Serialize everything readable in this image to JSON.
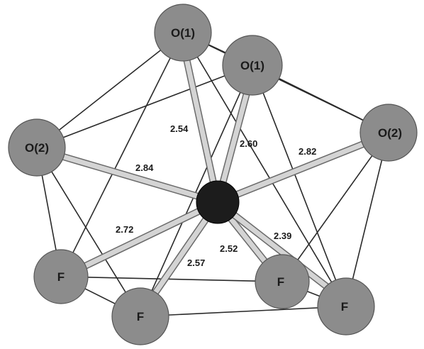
{
  "atoms": [
    {
      "id": "a1",
      "label": "O(1)",
      "type": "ligand"
    },
    {
      "id": "a2",
      "label": "O(1)",
      "type": "ligand"
    },
    {
      "id": "a3",
      "label": "O(2)",
      "type": "ligand"
    },
    {
      "id": "a4",
      "label": "O(2)",
      "type": "ligand"
    },
    {
      "id": "a5",
      "label": "F",
      "type": "ligand"
    },
    {
      "id": "a6",
      "label": "F",
      "type": "ligand"
    },
    {
      "id": "a7",
      "label": "F",
      "type": "ligand"
    },
    {
      "id": "a8",
      "label": "F",
      "type": "ligand"
    },
    {
      "id": "center",
      "label": "",
      "type": "central"
    }
  ],
  "bond_distances": [
    {
      "to": "a1",
      "value": "2.54"
    },
    {
      "to": "a2",
      "value": "2.60"
    },
    {
      "to": "a3",
      "value": "2.84"
    },
    {
      "to": "a4",
      "value": "2.82"
    },
    {
      "to": "a5",
      "value": "2.72"
    },
    {
      "to": "a6",
      "value": "2.57"
    },
    {
      "to": "a7",
      "value": "2.52"
    },
    {
      "to": "a8",
      "value": "2.39"
    }
  ],
  "colors": {
    "ligand_fill": "#8c8c8c",
    "central_fill": "#1c1c1c",
    "bond_fill": "#d4d4d4",
    "edge_line": "#2a2a2a"
  }
}
